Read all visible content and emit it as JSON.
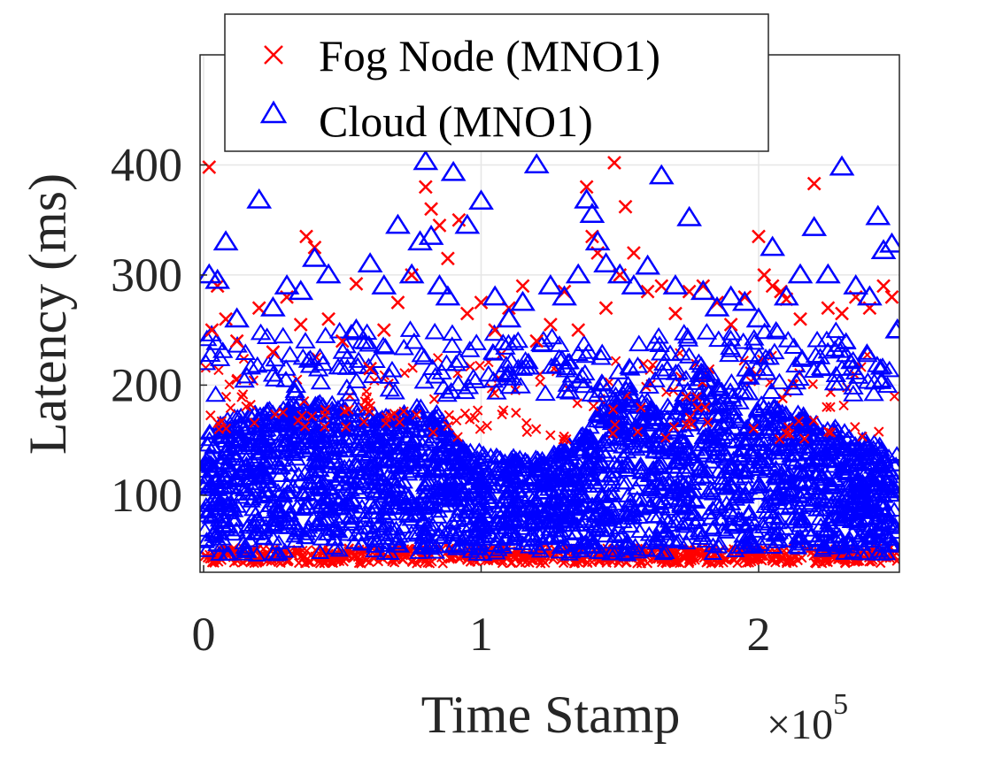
{
  "chart_data": {
    "type": "scatter",
    "xlabel": "Time Stamp",
    "ylabel": "Latency (ms)",
    "x_multiplier": {
      "base": "×10",
      "exponent": "5"
    },
    "xlim": [
      0,
      2.5
    ],
    "ylim": [
      30,
      500
    ],
    "xticks": [
      {
        "value": 0,
        "label": "0"
      },
      {
        "value": 1,
        "label": "1"
      },
      {
        "value": 2,
        "label": "2"
      }
    ],
    "yticks": [
      {
        "value": 100,
        "label": "100"
      },
      {
        "value": 200,
        "label": "200"
      },
      {
        "value": 300,
        "label": "300"
      },
      {
        "value": 400,
        "label": "400"
      }
    ],
    "grid": true,
    "legend_position": "top",
    "series": [
      {
        "name": "Fog Node (MNO1)",
        "marker": "x",
        "color": "#ff0000",
        "points": [
          [
            0.02,
            398
          ],
          [
            0.03,
            250
          ],
          [
            0.05,
            290
          ],
          [
            0.08,
            260
          ],
          [
            0.12,
            240
          ],
          [
            0.2,
            270
          ],
          [
            0.25,
            230
          ],
          [
            0.3,
            280
          ],
          [
            0.35,
            255
          ],
          [
            0.37,
            335
          ],
          [
            0.4,
            325
          ],
          [
            0.45,
            260
          ],
          [
            0.5,
            240
          ],
          [
            0.55,
            292
          ],
          [
            0.6,
            215
          ],
          [
            0.65,
            250
          ],
          [
            0.7,
            275
          ],
          [
            0.75,
            300
          ],
          [
            0.8,
            380
          ],
          [
            0.82,
            360
          ],
          [
            0.85,
            345
          ],
          [
            0.88,
            315
          ],
          [
            0.92,
            350
          ],
          [
            0.95,
            265
          ],
          [
            1.0,
            275
          ],
          [
            1.05,
            250
          ],
          [
            1.1,
            270
          ],
          [
            1.15,
            290
          ],
          [
            1.2,
            240
          ],
          [
            1.25,
            255
          ],
          [
            1.3,
            285
          ],
          [
            1.35,
            250
          ],
          [
            1.38,
            380
          ],
          [
            1.4,
            335
          ],
          [
            1.42,
            320
          ],
          [
            1.45,
            270
          ],
          [
            1.48,
            402
          ],
          [
            1.5,
            300
          ],
          [
            1.52,
            362
          ],
          [
            1.55,
            320
          ],
          [
            1.6,
            285
          ],
          [
            1.65,
            290
          ],
          [
            1.7,
            265
          ],
          [
            1.75,
            285
          ],
          [
            1.8,
            290
          ],
          [
            1.85,
            275
          ],
          [
            1.9,
            255
          ],
          [
            1.95,
            280
          ],
          [
            2.0,
            335
          ],
          [
            2.02,
            300
          ],
          [
            2.05,
            290
          ],
          [
            2.08,
            285
          ],
          [
            2.1,
            278
          ],
          [
            2.15,
            260
          ],
          [
            2.2,
            383
          ],
          [
            2.25,
            270
          ],
          [
            2.3,
            265
          ],
          [
            2.35,
            280
          ],
          [
            2.4,
            270
          ],
          [
            2.45,
            290
          ],
          [
            2.48,
            280
          ]
        ]
      },
      {
        "name": "Cloud (MNO1)",
        "marker": "triangle",
        "color": "#0000ff",
        "points": [
          [
            0.02,
            300
          ],
          [
            0.05,
            295
          ],
          [
            0.08,
            330
          ],
          [
            0.12,
            260
          ],
          [
            0.2,
            368
          ],
          [
            0.25,
            270
          ],
          [
            0.3,
            290
          ],
          [
            0.35,
            285
          ],
          [
            0.4,
            315
          ],
          [
            0.45,
            300
          ],
          [
            0.55,
            250
          ],
          [
            0.6,
            310
          ],
          [
            0.65,
            290
          ],
          [
            0.7,
            345
          ],
          [
            0.75,
            300
          ],
          [
            0.78,
            330
          ],
          [
            0.8,
            403
          ],
          [
            0.82,
            335
          ],
          [
            0.85,
            290
          ],
          [
            0.88,
            280
          ],
          [
            0.9,
            393
          ],
          [
            0.95,
            345
          ],
          [
            1.0,
            367
          ],
          [
            1.05,
            280
          ],
          [
            1.1,
            260
          ],
          [
            1.15,
            275
          ],
          [
            1.2,
            400
          ],
          [
            1.25,
            290
          ],
          [
            1.3,
            280
          ],
          [
            1.35,
            300
          ],
          [
            1.38,
            368
          ],
          [
            1.4,
            355
          ],
          [
            1.42,
            330
          ],
          [
            1.45,
            310
          ],
          [
            1.5,
            300
          ],
          [
            1.55,
            290
          ],
          [
            1.6,
            308
          ],
          [
            1.65,
            390
          ],
          [
            1.7,
            290
          ],
          [
            1.75,
            352
          ],
          [
            1.8,
            285
          ],
          [
            1.85,
            270
          ],
          [
            1.9,
            280
          ],
          [
            1.95,
            275
          ],
          [
            2.0,
            260
          ],
          [
            2.05,
            325
          ],
          [
            2.1,
            280
          ],
          [
            2.15,
            300
          ],
          [
            2.2,
            343
          ],
          [
            2.25,
            300
          ],
          [
            2.3,
            398
          ],
          [
            2.35,
            290
          ],
          [
            2.4,
            280
          ],
          [
            2.43,
            353
          ],
          [
            2.45,
            322
          ],
          [
            2.48,
            328
          ],
          [
            2.5,
            250
          ]
        ]
      }
    ]
  }
}
